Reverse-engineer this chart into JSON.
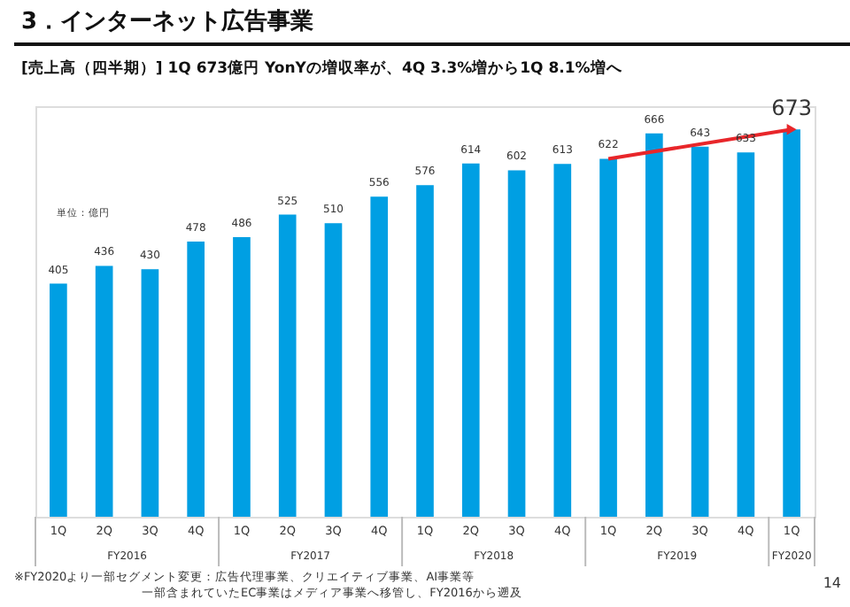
{
  "chart_data": {
    "type": "bar",
    "title": "3．インターネット広告事業",
    "subtitle": "[売上高（四半期）]  1Q 673億円  YonYの増収率が、4Q 3.3%増から1Q 8.1%増へ",
    "categories": [
      "1Q",
      "2Q",
      "3Q",
      "4Q",
      "1Q",
      "2Q",
      "3Q",
      "4Q",
      "1Q",
      "2Q",
      "3Q",
      "4Q",
      "1Q",
      "2Q",
      "3Q",
      "4Q",
      "1Q"
    ],
    "series": [
      {
        "color": "#009fe3",
        "values": [
          405,
          436,
          430,
          478,
          486,
          525,
          510,
          556,
          576,
          614,
          602,
          613,
          622,
          666,
          643,
          633,
          673
        ],
        "value_labels": [
          "405",
          "436",
          "430",
          "478",
          "486",
          "525",
          "510",
          "556",
          "576",
          "614",
          "602",
          "613",
          "622",
          "666",
          "643",
          "633",
          "673"
        ]
      },
      {
        "type": "line",
        "color": "#e8262a",
        "values": [
          null,
          null,
          null,
          null,
          null,
          null,
          null,
          null,
          null,
          null,
          null,
          null,
          622,
          null,
          null,
          null,
          673
        ],
        "value_labels": [
          null,
          null,
          null,
          null,
          null,
          null,
          null,
          null,
          null,
          null,
          null,
          null,
          null,
          null,
          null,
          null,
          null
        ]
      }
    ],
    "annotations": [
      "単位：億円",
      "FY2016",
      "FY2017",
      "FY2018",
      "FY2019",
      "FY2020",
      "※FY2020より一部セグメント変更：広告代理事業、クリエイティブ事業、AI事業等",
      "一部含まれていたEC事業はメディア事業へ移管し、FY2016から遡及",
      "14"
    ]
  }
}
